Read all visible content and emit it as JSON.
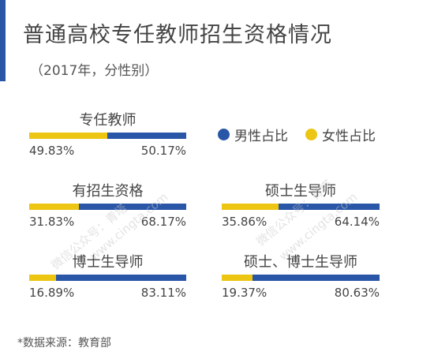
{
  "header": {
    "title": "普通高校专任教师招生资格情况",
    "subtitle": "（2017年，分性别）"
  },
  "legend": {
    "male": "男性占比",
    "female": "女性占比"
  },
  "colors": {
    "male": "#2a56a8",
    "female": "#ecc613",
    "accent": "#2a56a8"
  },
  "chart_data": {
    "type": "bar",
    "orientation": "horizontal-stacked-100",
    "title": "普通高校专任教师招生资格情况",
    "subtitle": "（2017年，分性别）",
    "categories": [
      "专任教师",
      "有招生资格",
      "硕士生导师",
      "博士生导师",
      "硕士、博士生导师"
    ],
    "series": [
      {
        "name": "女性占比",
        "values": [
          49.83,
          31.83,
          35.86,
          16.89,
          19.37
        ]
      },
      {
        "name": "男性占比",
        "values": [
          50.17,
          68.17,
          64.14,
          83.11,
          80.63
        ]
      }
    ],
    "labels": {
      "female": [
        "49.83%",
        "31.83%",
        "35.86%",
        "16.89%",
        "19.37%"
      ],
      "male": [
        "50.17%",
        "68.17%",
        "64.14%",
        "83.11%",
        "80.63%"
      ]
    }
  },
  "footer": {
    "source": "*数据来源：教育部"
  },
  "watermarks": [
    "微信公众号：青塔",
    "www.cingta.com",
    "微信公众号：青塔",
    "www.cingta.com"
  ]
}
